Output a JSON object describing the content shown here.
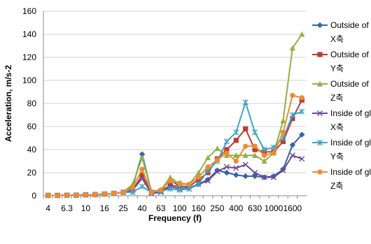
{
  "chart_data": {
    "type": "line",
    "title": "",
    "xlabel": "Frequency (f)",
    "ylabel": "Acceleration, m/s-2",
    "ylim": [
      0,
      160
    ],
    "yticks": [
      0,
      20,
      40,
      60,
      80,
      100,
      120,
      140,
      160
    ],
    "grid": "horizontal",
    "legend_position": "right",
    "categories": [
      "4",
      "5",
      "6.3",
      "8",
      "10",
      "12.5",
      "16",
      "20",
      "25",
      "31.5",
      "40",
      "50",
      "63",
      "80",
      "100",
      "125",
      "160",
      "200",
      "250",
      "315",
      "400",
      "500",
      "630",
      "800",
      "1000",
      "1250",
      "1600",
      "2000"
    ],
    "shown_tick_labels": [
      "4",
      "6.3",
      "10",
      "16",
      "25",
      "40",
      "63",
      "100",
      "160",
      "250",
      "400",
      "630",
      "1000",
      "1600"
    ],
    "series": [
      {
        "name": "Outside of glove, X축",
        "color": "#3465a4",
        "marker": "diamond",
        "values": [
          0.3,
          0.3,
          0.4,
          0.5,
          0.8,
          1,
          1.5,
          2,
          3,
          8,
          36,
          3,
          4,
          14,
          8,
          7,
          10,
          14,
          22,
          20,
          18,
          17,
          17,
          16,
          17,
          23,
          44,
          53
        ]
      },
      {
        "name": "Outside of glove, Y축",
        "color": "#be3a34",
        "marker": "square",
        "values": [
          0.3,
          0.3,
          0.4,
          0.5,
          0.8,
          1,
          1.5,
          2,
          3,
          5,
          18,
          3,
          4,
          9,
          8,
          8,
          14,
          20,
          32,
          40,
          48,
          58,
          40,
          38,
          38,
          47,
          67,
          83
        ]
      },
      {
        "name": "Outside of glove, Z축",
        "color": "#8eb244",
        "marker": "triangle",
        "values": [
          0.3,
          0.3,
          0.4,
          0.5,
          0.8,
          1,
          1.5,
          2,
          3,
          10,
          33,
          4,
          5,
          16,
          10,
          10,
          20,
          33,
          41,
          35,
          35,
          35,
          35,
          30,
          37,
          65,
          128,
          140
        ]
      },
      {
        "name": "Inside of glove, X축",
        "color": "#6b4a9c",
        "marker": "x",
        "values": [
          0.3,
          0.3,
          0.4,
          0.5,
          0.8,
          1,
          1.5,
          2,
          3,
          5,
          15,
          2,
          3,
          8,
          6,
          6,
          10,
          13,
          21,
          25,
          24,
          27,
          20,
          16,
          16,
          22,
          35,
          32
        ]
      },
      {
        "name": "Inside of glove, Y축",
        "color": "#3ea7c4",
        "marker": "star",
        "values": [
          0.3,
          0.3,
          0.4,
          0.5,
          0.8,
          1,
          1.5,
          2,
          3,
          3,
          8,
          3,
          4,
          6,
          5,
          6,
          10,
          22,
          30,
          47,
          55,
          81,
          55,
          40,
          42,
          50,
          70,
          73
        ]
      },
      {
        "name": "Inside of glove, Z축",
        "color": "#ee8a30",
        "marker": "circle",
        "values": [
          0.3,
          0.3,
          0.4,
          0.5,
          0.8,
          1,
          1.5,
          2,
          3,
          7,
          23,
          3,
          5,
          13,
          11,
          10,
          16,
          25,
          31,
          37,
          30,
          43,
          43,
          35,
          37,
          55,
          87,
          85
        ]
      }
    ]
  }
}
